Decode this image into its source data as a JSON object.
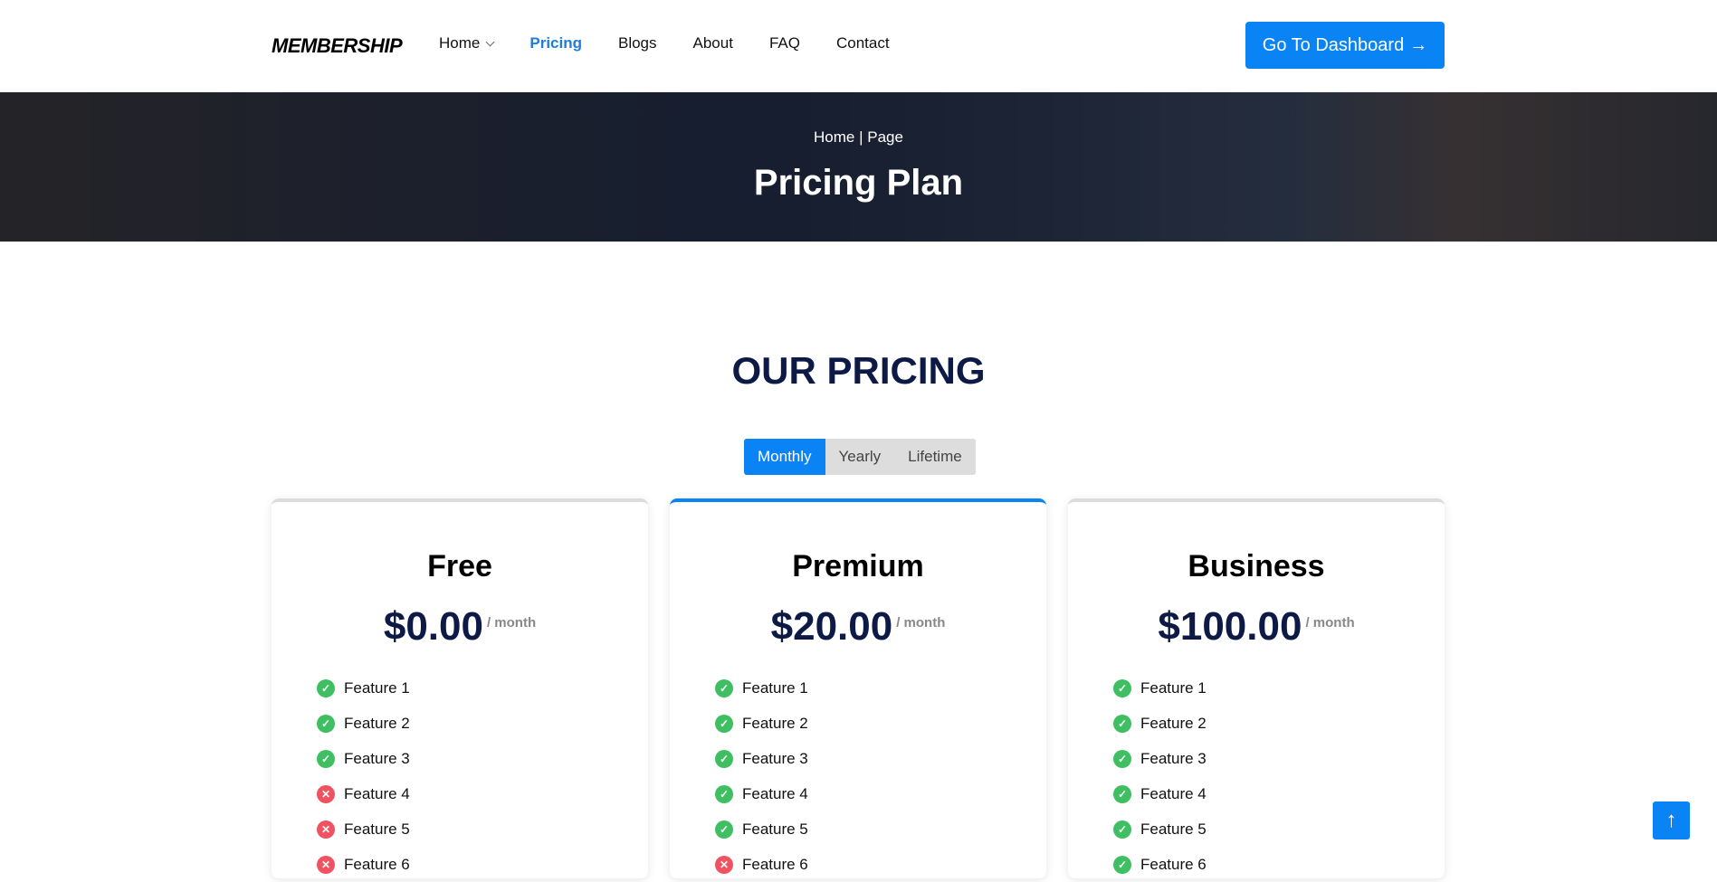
{
  "nav": {
    "logo": "MEMBERSHIP",
    "items": [
      {
        "label": "Home",
        "dropdown": true
      },
      {
        "label": "Pricing",
        "active": true
      },
      {
        "label": "Blogs"
      },
      {
        "label": "About"
      },
      {
        "label": "FAQ"
      },
      {
        "label": "Contact"
      }
    ],
    "cta": "Go To Dashboard",
    "cta_icon": "→"
  },
  "hero": {
    "breadcrumb": "Home | Page",
    "title": "Pricing Plan"
  },
  "section": {
    "title": "OUR PRICING",
    "toggle": [
      "Monthly",
      "Yearly",
      "Lifetime"
    ],
    "selected": "Monthly"
  },
  "plans": [
    {
      "name": "Free",
      "price": "$0.00",
      "period": "/ month",
      "features": [
        {
          "label": "Feature 1",
          "included": true
        },
        {
          "label": "Feature 2",
          "included": true
        },
        {
          "label": "Feature 3",
          "included": true
        },
        {
          "label": "Feature 4",
          "included": false
        },
        {
          "label": "Feature 5",
          "included": false
        },
        {
          "label": "Feature 6",
          "included": false
        }
      ]
    },
    {
      "name": "Premium",
      "price": "$20.00",
      "period": "/ month",
      "highlighted": true,
      "features": [
        {
          "label": "Feature 1",
          "included": true
        },
        {
          "label": "Feature 2",
          "included": true
        },
        {
          "label": "Feature 3",
          "included": true
        },
        {
          "label": "Feature 4",
          "included": true
        },
        {
          "label": "Feature 5",
          "included": true
        },
        {
          "label": "Feature 6",
          "included": false
        }
      ]
    },
    {
      "name": "Business",
      "price": "$100.00",
      "period": "/ month",
      "features": [
        {
          "label": "Feature 1",
          "included": true
        },
        {
          "label": "Feature 2",
          "included": true
        },
        {
          "label": "Feature 3",
          "included": true
        },
        {
          "label": "Feature 4",
          "included": true
        },
        {
          "label": "Feature 5",
          "included": true
        },
        {
          "label": "Feature 6",
          "included": true
        }
      ]
    }
  ],
  "scroll_top_icon": "↑",
  "colors": {
    "accent": "#0a84f5",
    "check": "#3fbf62",
    "cross": "#ef5261",
    "heading": "#0d1a45"
  }
}
